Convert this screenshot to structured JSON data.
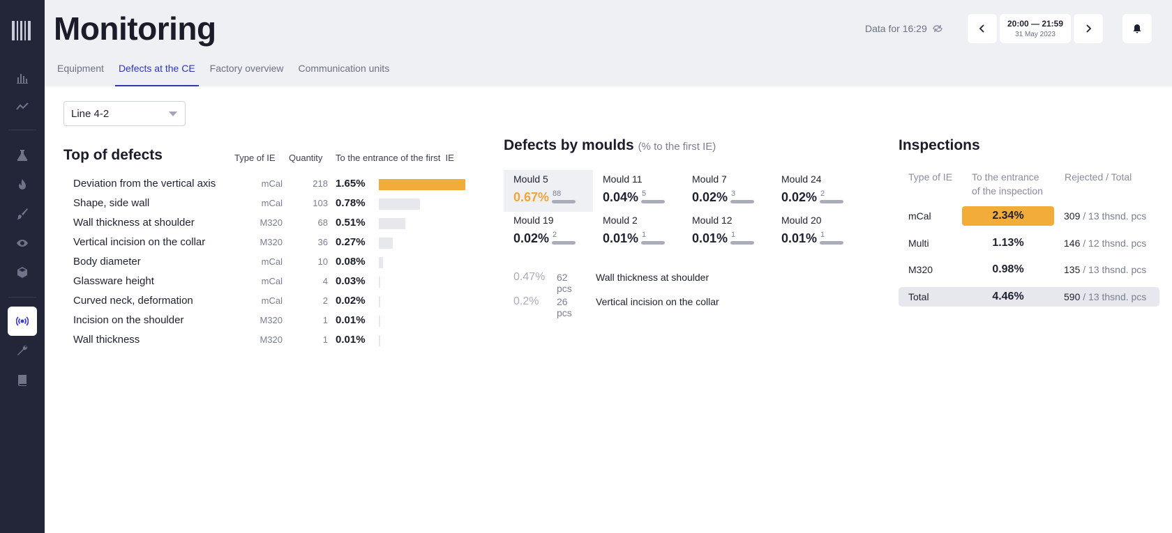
{
  "app": {
    "title": "Monitoring",
    "tabs": [
      "Equipment",
      "Defects at the CE",
      "Factory overview",
      "Communication units"
    ],
    "active_tab": 1
  },
  "sidebar": {
    "icons": [
      "chart-bar-icon",
      "line-chart-icon",
      "flask-icon",
      "flame-icon",
      "brush-icon",
      "eye-icon",
      "box-icon",
      "broadcast-icon",
      "wrench-icon",
      "book-icon"
    ],
    "active": "broadcast-icon"
  },
  "header": {
    "data_for": "Data for 16:29",
    "time_range": "20:00 — 21:59",
    "date": "31 May 2023"
  },
  "filter": {
    "line": "Line 4-2"
  },
  "top_defects": {
    "title": "Top of defects",
    "col_type": "Type of IE",
    "col_qty": "Quantity",
    "col_entrance": "To the entrance of the first  IE",
    "rows": [
      {
        "name": "Deviation from the vertical axis",
        "type": "mCal",
        "qty": "218",
        "pct": "1.65%",
        "value": 1.65
      },
      {
        "name": "Shape, side wall",
        "type": "mCal",
        "qty": "103",
        "pct": "0.78%",
        "value": 0.78
      },
      {
        "name": "Wall thickness at shoulder",
        "type": "M320",
        "qty": "68",
        "pct": "0.51%",
        "value": 0.51
      },
      {
        "name": "Vertical incision on the collar",
        "type": "M320",
        "qty": "36",
        "pct": "0.27%",
        "value": 0.27
      },
      {
        "name": "Body diameter",
        "type": "mCal",
        "qty": "10",
        "pct": "0.08%",
        "value": 0.08
      },
      {
        "name": "Glassware height",
        "type": "mCal",
        "qty": "4",
        "pct": "0.03%",
        "value": 0.03
      },
      {
        "name": "Curved neck, deformation",
        "type": "mCal",
        "qty": "2",
        "pct": "0.02%",
        "value": 0.02
      },
      {
        "name": "Incision on the shoulder",
        "type": "M320",
        "qty": "1",
        "pct": "0.01%",
        "value": 0.01
      },
      {
        "name": "Wall thickness",
        "type": "M320",
        "qty": "1",
        "pct": "0.01%",
        "value": 0.01
      }
    ]
  },
  "moulds": {
    "title": "Defects by moulds",
    "subtitle": "(% to the first IE)",
    "items": [
      {
        "name": "Mould 5",
        "pct": "0.67%",
        "count": "88"
      },
      {
        "name": "Mould 11",
        "pct": "0.04%",
        "count": "5"
      },
      {
        "name": "Mould 7",
        "pct": "0.02%",
        "count": "3"
      },
      {
        "name": "Mould 24",
        "pct": "0.02%",
        "count": "2"
      },
      {
        "name": "Mould 19",
        "pct": "0.02%",
        "count": "2"
      },
      {
        "name": "Mould 2",
        "pct": "0.01%",
        "count": "1"
      },
      {
        "name": "Mould 12",
        "pct": "0.01%",
        "count": "1"
      },
      {
        "name": "Mould 20",
        "pct": "0.01%",
        "count": "1"
      }
    ],
    "details": [
      {
        "pct": "0.47%",
        "pcs": "62 pcs",
        "name": "Wall thickness at shoulder"
      },
      {
        "pct": "0.2%",
        "pcs": "26 pcs",
        "name": "Vertical incision on the collar"
      }
    ]
  },
  "inspections": {
    "title": "Inspections",
    "col_type": "Type of IE",
    "col_entrance_1": "To the entrance",
    "col_entrance_2": "of the inspection",
    "col_rejected": "Rejected / Total",
    "rows": [
      {
        "type": "mCal",
        "pct": "2.34%",
        "rejected": "309",
        "total": " / 13 thsnd. pcs"
      },
      {
        "type": "Multi",
        "pct": "1.13%",
        "rejected": "146",
        "total": " / 12 thsnd. pcs"
      },
      {
        "type": "M320",
        "pct": "0.98%",
        "rejected": "135",
        "total": " / 13 thsnd. pcs"
      },
      {
        "type": "Total",
        "pct": "4.46%",
        "rejected": "590",
        "total": " / 13 thsnd. pcs"
      }
    ]
  },
  "colors": {
    "accent": "#f2ac3a",
    "primary": "#2e36b8",
    "sidebar": "#232639"
  }
}
